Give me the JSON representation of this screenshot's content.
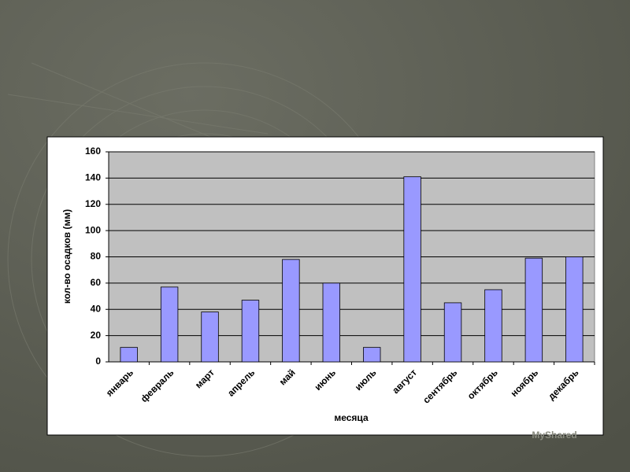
{
  "chart_data": {
    "type": "bar",
    "x_label": "месяца",
    "y_label": "кол-во осадков (мм)",
    "categories": [
      "январь",
      "февраль",
      "март",
      "апрель",
      "май",
      "июнь",
      "июль",
      "август",
      "сентябрь",
      "октябрь",
      "ноябрь",
      "декабрь"
    ],
    "values": [
      11,
      57,
      38,
      47,
      78,
      60,
      11,
      141,
      45,
      55,
      79,
      80
    ],
    "color": "#9999ff",
    "ylim": [
      0,
      160
    ],
    "yticks": [
      0,
      20,
      40,
      60,
      80,
      100,
      120,
      140,
      160
    ],
    "grid": true
  },
  "watermark": "MyShared"
}
